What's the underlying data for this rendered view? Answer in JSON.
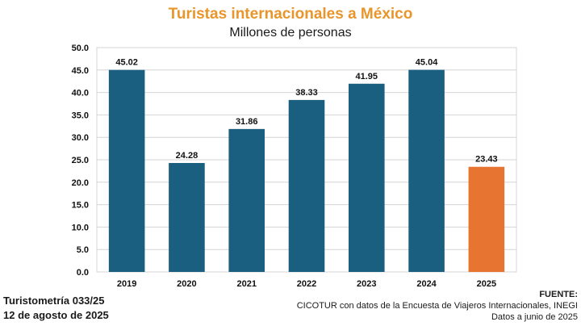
{
  "chart_data": {
    "type": "bar",
    "title": "Turistas internacionales a México",
    "subtitle": "Millones de personas",
    "categories": [
      "2019",
      "2020",
      "2021",
      "2022",
      "2023",
      "2024",
      "2025"
    ],
    "values": [
      45.02,
      24.28,
      31.86,
      38.33,
      41.95,
      45.04,
      23.43
    ],
    "value_labels": [
      "45.02",
      "24.28",
      "31.86",
      "38.33",
      "41.95",
      "45.04",
      "23.43"
    ],
    "bar_colors": [
      "#1a5e80",
      "#1a5e80",
      "#1a5e80",
      "#1a5e80",
      "#1a5e80",
      "#1a5e80",
      "#e87431"
    ],
    "ylim": [
      0,
      50
    ],
    "yticks": [
      "0.0",
      "5.0",
      "10.0",
      "15.0",
      "20.0",
      "25.0",
      "30.0",
      "35.0",
      "40.0",
      "45.0",
      "50.0"
    ],
    "grid": true,
    "xlabel": "",
    "ylabel": ""
  },
  "footer": {
    "left_line1": "Turistometría 033/25",
    "left_line2": "12 de agosto de 2025",
    "source_label": "FUENTE:",
    "source_line1": "CICOTUR con datos de la Encuesta de Viajeros Internacionales, INEGI",
    "source_line2": "Datos a junio de 2025"
  },
  "colors": {
    "title": "#e8962b",
    "bar_primary": "#1a5e80",
    "bar_highlight": "#e87431",
    "grid": "#d4d4d4"
  }
}
